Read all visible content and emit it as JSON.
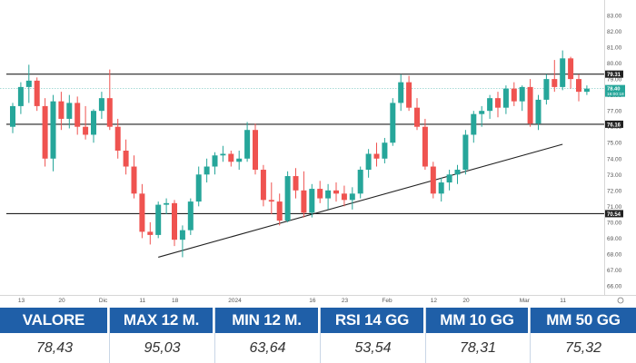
{
  "chart_data": {
    "type": "candlestick",
    "y_axis": {
      "position": "right",
      "ylim": [
        66.0,
        83.0
      ],
      "ticks": [
        "83.00",
        "82.00",
        "81.00",
        "80.00",
        "79.00",
        "78.00",
        "77.00",
        "76.00",
        "75.00",
        "74.00",
        "73.00",
        "72.00",
        "71.00",
        "70.00",
        "69.00",
        "68.00",
        "67.00",
        "66.00"
      ]
    },
    "x_axis": {
      "ticks": [
        {
          "label": "13",
          "i": 1
        },
        {
          "label": "20",
          "i": 6
        },
        {
          "label": "Dic",
          "i": 11
        },
        {
          "label": "11",
          "i": 16
        },
        {
          "label": "18",
          "i": 20
        },
        {
          "label": "2024",
          "i": 27
        },
        {
          "label": "16",
          "i": 37
        },
        {
          "label": "23",
          "i": 41
        },
        {
          "label": "Feb",
          "i": 46
        },
        {
          "label": "12",
          "i": 52
        },
        {
          "label": "20",
          "i": 56
        },
        {
          "label": "Mar",
          "i": 63
        },
        {
          "label": "11",
          "i": 68
        }
      ]
    },
    "horizontal_lines": [
      {
        "value": 79.31,
        "label": "79.31"
      },
      {
        "value": 76.16,
        "label": "76.16"
      },
      {
        "value": 70.54,
        "label": "70.54"
      }
    ],
    "last_price": {
      "value": 78.4,
      "label": "78.40",
      "countdown": "16:00:18"
    },
    "trendline": {
      "from": {
        "i": 18,
        "value": 67.8
      },
      "to": {
        "i": 68,
        "value": 74.9
      }
    },
    "candles": [
      [
        76.0,
        77.5,
        75.6,
        77.3
      ],
      [
        77.3,
        78.8,
        76.8,
        78.5
      ],
      [
        78.5,
        79.9,
        77.5,
        78.9
      ],
      [
        78.9,
        79.1,
        77.0,
        77.3
      ],
      [
        77.3,
        77.8,
        73.5,
        74.0
      ],
      [
        74.0,
        78.0,
        73.2,
        77.6
      ],
      [
        77.6,
        78.2,
        75.8,
        76.5
      ],
      [
        76.5,
        78.0,
        75.9,
        77.5
      ],
      [
        77.5,
        77.9,
        75.5,
        76.0
      ],
      [
        76.0,
        77.3,
        75.2,
        75.5
      ],
      [
        75.5,
        77.1,
        75.0,
        77.0
      ],
      [
        77.0,
        78.2,
        76.5,
        77.8
      ],
      [
        77.8,
        79.6,
        75.8,
        76.0
      ],
      [
        76.0,
        76.5,
        74.0,
        74.5
      ],
      [
        74.5,
        75.2,
        73.0,
        73.5
      ],
      [
        73.5,
        74.2,
        71.5,
        71.8
      ],
      [
        71.8,
        72.4,
        69.0,
        69.4
      ],
      [
        69.4,
        70.0,
        68.6,
        69.2
      ],
      [
        69.2,
        71.3,
        69.0,
        71.1
      ],
      [
        71.1,
        71.5,
        70.5,
        71.2
      ],
      [
        71.2,
        71.4,
        68.5,
        68.9
      ],
      [
        68.9,
        69.8,
        67.8,
        69.5
      ],
      [
        69.5,
        71.5,
        69.2,
        71.3
      ],
      [
        71.3,
        73.5,
        71.0,
        73.0
      ],
      [
        73.0,
        74.0,
        72.5,
        73.5
      ],
      [
        73.5,
        74.4,
        73.0,
        74.2
      ],
      [
        74.2,
        74.8,
        73.8,
        74.3
      ],
      [
        74.3,
        74.5,
        73.5,
        73.8
      ],
      [
        73.8,
        74.5,
        73.3,
        74.0
      ],
      [
        74.0,
        76.3,
        73.8,
        75.8
      ],
      [
        75.8,
        76.2,
        73.0,
        73.3
      ],
      [
        73.3,
        73.6,
        71.0,
        71.4
      ],
      [
        71.4,
        72.5,
        70.5,
        71.3
      ],
      [
        71.3,
        71.8,
        69.8,
        70.1
      ],
      [
        70.1,
        73.2,
        70.0,
        72.9
      ],
      [
        72.9,
        73.4,
        71.5,
        72.0
      ],
      [
        72.0,
        73.2,
        70.3,
        70.6
      ],
      [
        70.6,
        72.4,
        70.3,
        72.1
      ],
      [
        72.1,
        72.6,
        71.2,
        71.5
      ],
      [
        71.5,
        72.4,
        70.8,
        72.0
      ],
      [
        72.0,
        72.5,
        71.3,
        71.8
      ],
      [
        71.8,
        72.3,
        71.0,
        71.4
      ],
      [
        71.4,
        72.2,
        70.8,
        71.8
      ],
      [
        71.8,
        73.5,
        71.5,
        73.3
      ],
      [
        73.3,
        74.6,
        72.8,
        74.3
      ],
      [
        74.3,
        75.0,
        73.5,
        74.0
      ],
      [
        74.0,
        75.3,
        73.7,
        75.0
      ],
      [
        75.0,
        77.8,
        74.8,
        77.5
      ],
      [
        77.5,
        79.3,
        77.0,
        78.8
      ],
      [
        78.8,
        79.2,
        77.0,
        77.2
      ],
      [
        77.2,
        77.8,
        75.8,
        76.0
      ],
      [
        76.0,
        76.5,
        73.3,
        73.5
      ],
      [
        73.5,
        73.8,
        71.5,
        71.8
      ],
      [
        71.8,
        72.8,
        71.3,
        72.5
      ],
      [
        72.5,
        73.3,
        72.0,
        73.0
      ],
      [
        73.0,
        73.6,
        72.4,
        73.3
      ],
      [
        73.3,
        75.8,
        73.0,
        75.5
      ],
      [
        75.5,
        77.0,
        75.0,
        76.8
      ],
      [
        76.8,
        77.3,
        76.0,
        77.0
      ],
      [
        77.0,
        78.0,
        76.5,
        77.8
      ],
      [
        77.8,
        78.2,
        76.6,
        77.2
      ],
      [
        77.2,
        78.6,
        76.8,
        78.4
      ],
      [
        78.4,
        78.8,
        77.3,
        77.6
      ],
      [
        77.6,
        78.6,
        77.0,
        78.5
      ],
      [
        78.5,
        79.0,
        76.0,
        76.2
      ],
      [
        76.2,
        78.0,
        75.8,
        77.7
      ],
      [
        77.7,
        79.3,
        77.4,
        79.0
      ],
      [
        79.0,
        80.2,
        78.2,
        78.5
      ],
      [
        78.5,
        80.8,
        78.3,
        80.3
      ],
      [
        80.3,
        80.4,
        78.4,
        79.0
      ],
      [
        79.0,
        79.3,
        77.6,
        78.2
      ],
      [
        78.2,
        78.6,
        78.0,
        78.4
      ]
    ],
    "up_color": "#26a69a",
    "down_color": "#ef5350"
  },
  "stats": [
    {
      "label": "VALORE",
      "value": "78,43"
    },
    {
      "label": "MAX 12 M.",
      "value": "95,03"
    },
    {
      "label": "MIN 12 M.",
      "value": "63,64"
    },
    {
      "label": "RSI 14 GG",
      "value": "53,54"
    },
    {
      "label": "MM 10 GG",
      "value": "78,31"
    },
    {
      "label": "MM 50 GG",
      "value": "75,32"
    }
  ]
}
